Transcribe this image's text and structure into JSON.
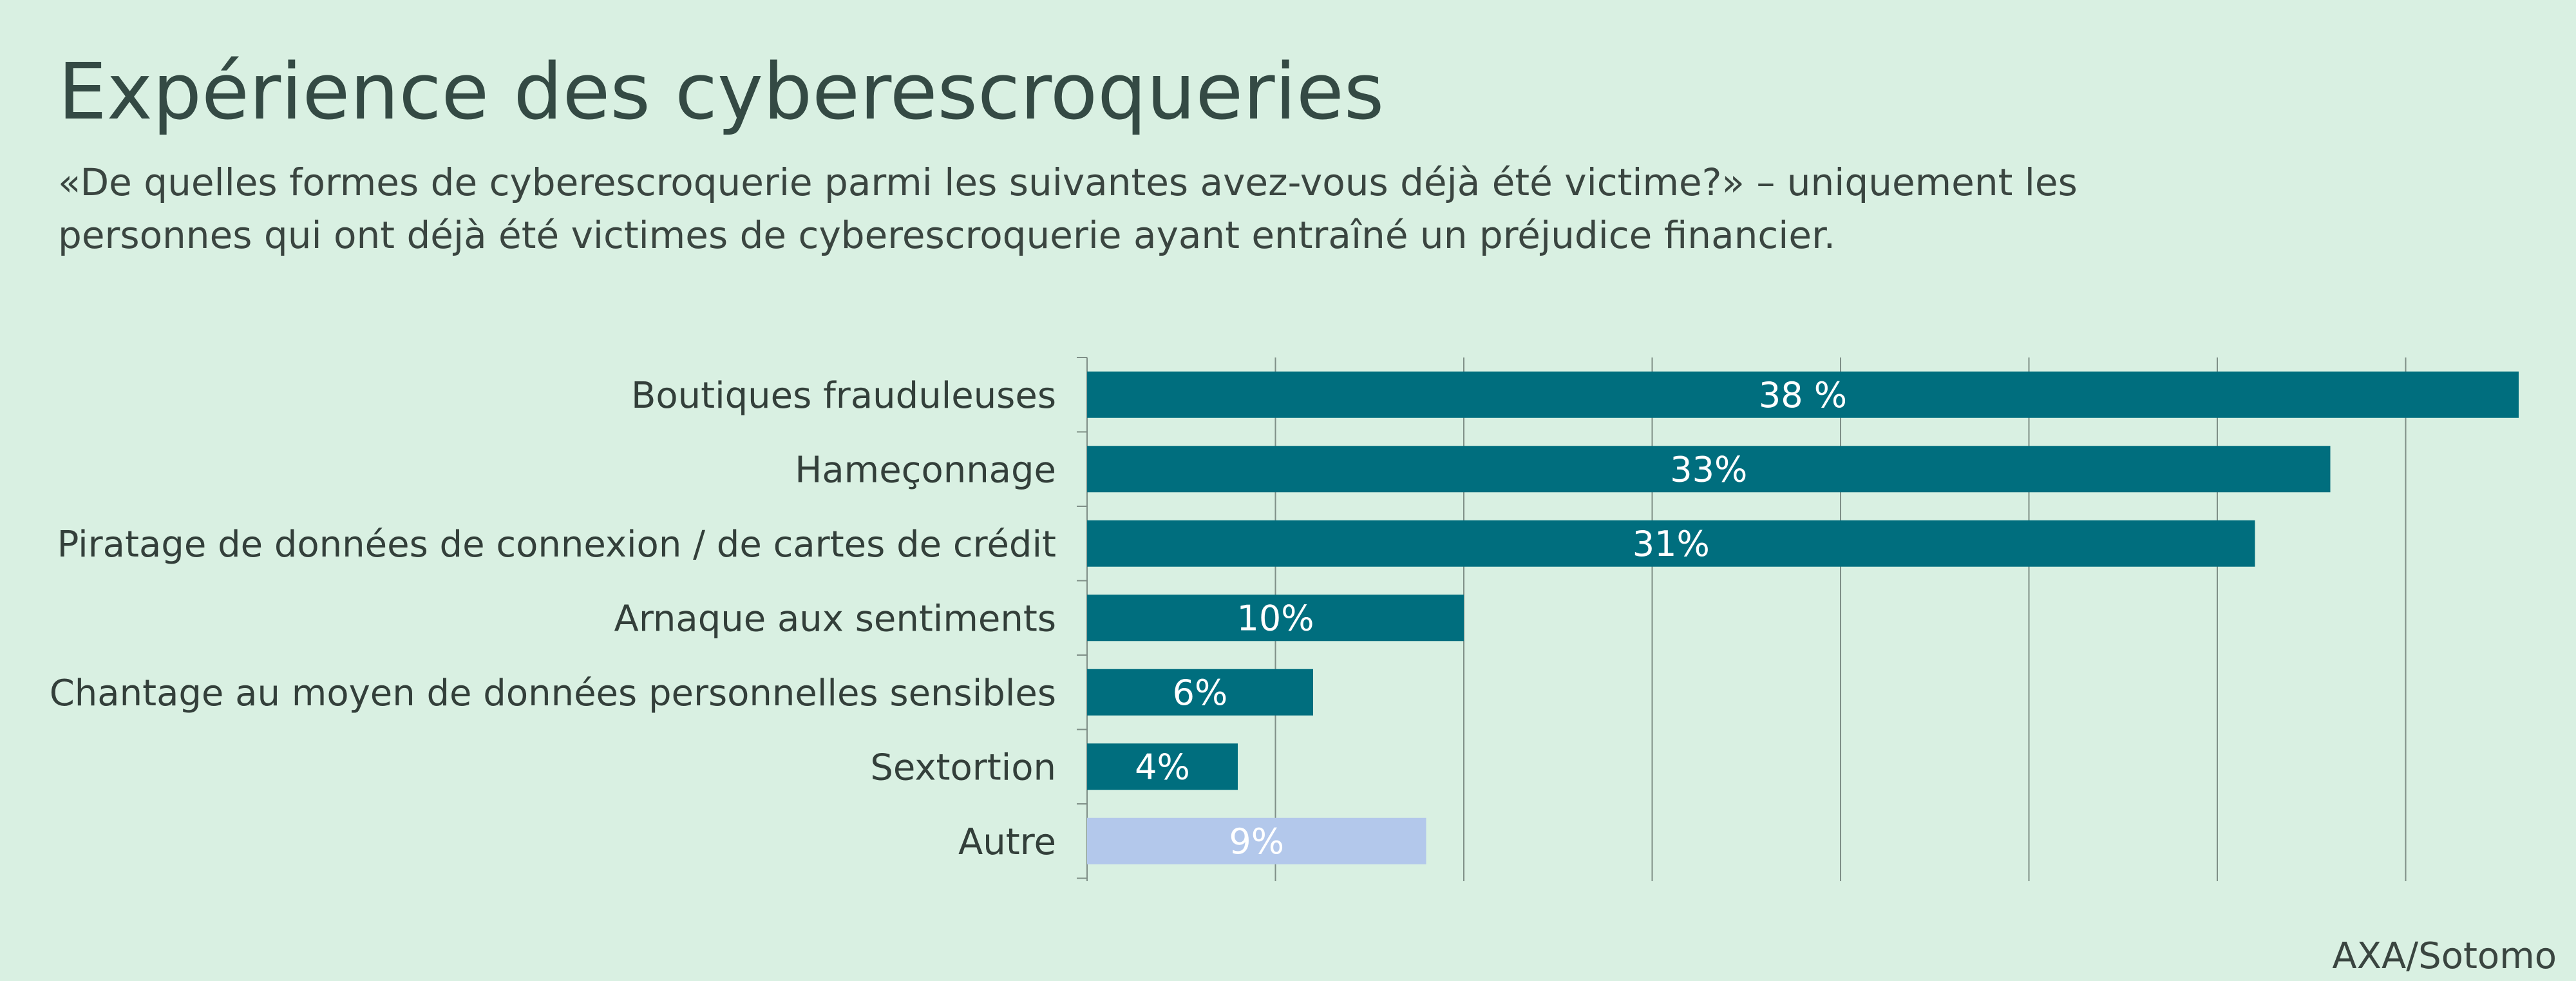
{
  "chart_data": {
    "type": "bar",
    "orientation": "horizontal",
    "title": "Expérience des cyberescroqueries",
    "subtitle": "«De quelles formes de cyberescroquerie parmi les suivantes avez-vous déjà été victime?» – uniquement les personnes qui ont déjà été victimes de cyberescroquerie ayant entraîné un préjudice financier.",
    "source": "AXA/Sotomo",
    "categories": [
      "Boutiques frauduleuses",
      "Hameçonnage",
      "Piratage de données de connexion / de cartes de crédit",
      "Arnaque aux sentiments",
      "Chantage au moyen de données personnelles sensibles",
      "Sextortion",
      "Autre"
    ],
    "values": [
      38,
      33,
      31,
      10,
      6,
      4,
      9
    ],
    "value_labels": [
      "38 %",
      "33%",
      "31%",
      "10%",
      "6%",
      "4%",
      "9%"
    ],
    "colors": [
      "#006e7e",
      "#006e7e",
      "#006e7e",
      "#006e7e",
      "#006e7e",
      "#006e7e",
      "#b3c8eb"
    ],
    "xlim": [
      0,
      40
    ],
    "grid_step": 5,
    "grid": true,
    "legend": "none"
  }
}
